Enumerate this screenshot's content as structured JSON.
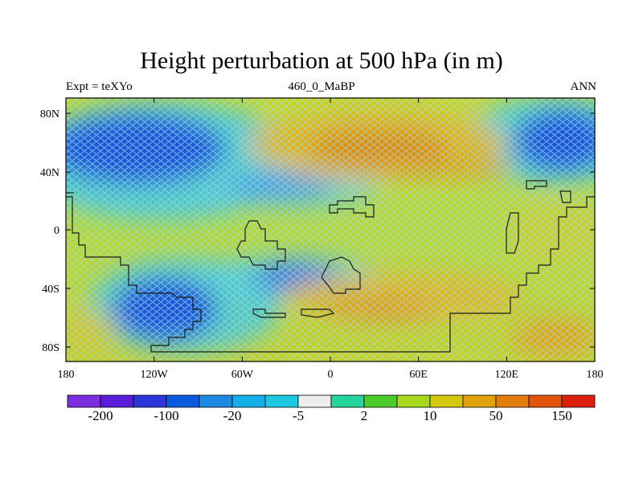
{
  "title": "Height perturbation at 500 hPa (in m)",
  "left_string": "Expt = teXYo",
  "center_string": "460_0_MaBP",
  "right_string": "ANN",
  "x_ticks": [
    "180",
    "120W",
    "60W",
    "0",
    "60E",
    "120E",
    "180"
  ],
  "y_ticks": [
    "80N",
    "40N",
    "0",
    "40S",
    "80S"
  ],
  "colorbar": {
    "colors": [
      "#7b2fe0",
      "#5a1ed8",
      "#2b35d9",
      "#0a5ae0",
      "#1f8ae6",
      "#14aee8",
      "#1bc8e0",
      "#eeeeee",
      "#25d49a",
      "#4ccb2a",
      "#a8d81c",
      "#d4c80e",
      "#e0a20a",
      "#e37c0a",
      "#e2530c",
      "#de200e"
    ],
    "labels": [
      {
        "text": "-200",
        "after_box": 1
      },
      {
        "text": "-100",
        "after_box": 3
      },
      {
        "text": "-20",
        "after_box": 5
      },
      {
        "text": "-5",
        "after_box": 7
      },
      {
        "text": "2",
        "after_box": 9
      },
      {
        "text": "10",
        "after_box": 11
      },
      {
        "text": "50",
        "after_box": 13
      },
      {
        "text": "150",
        "after_box": 15
      }
    ]
  }
}
